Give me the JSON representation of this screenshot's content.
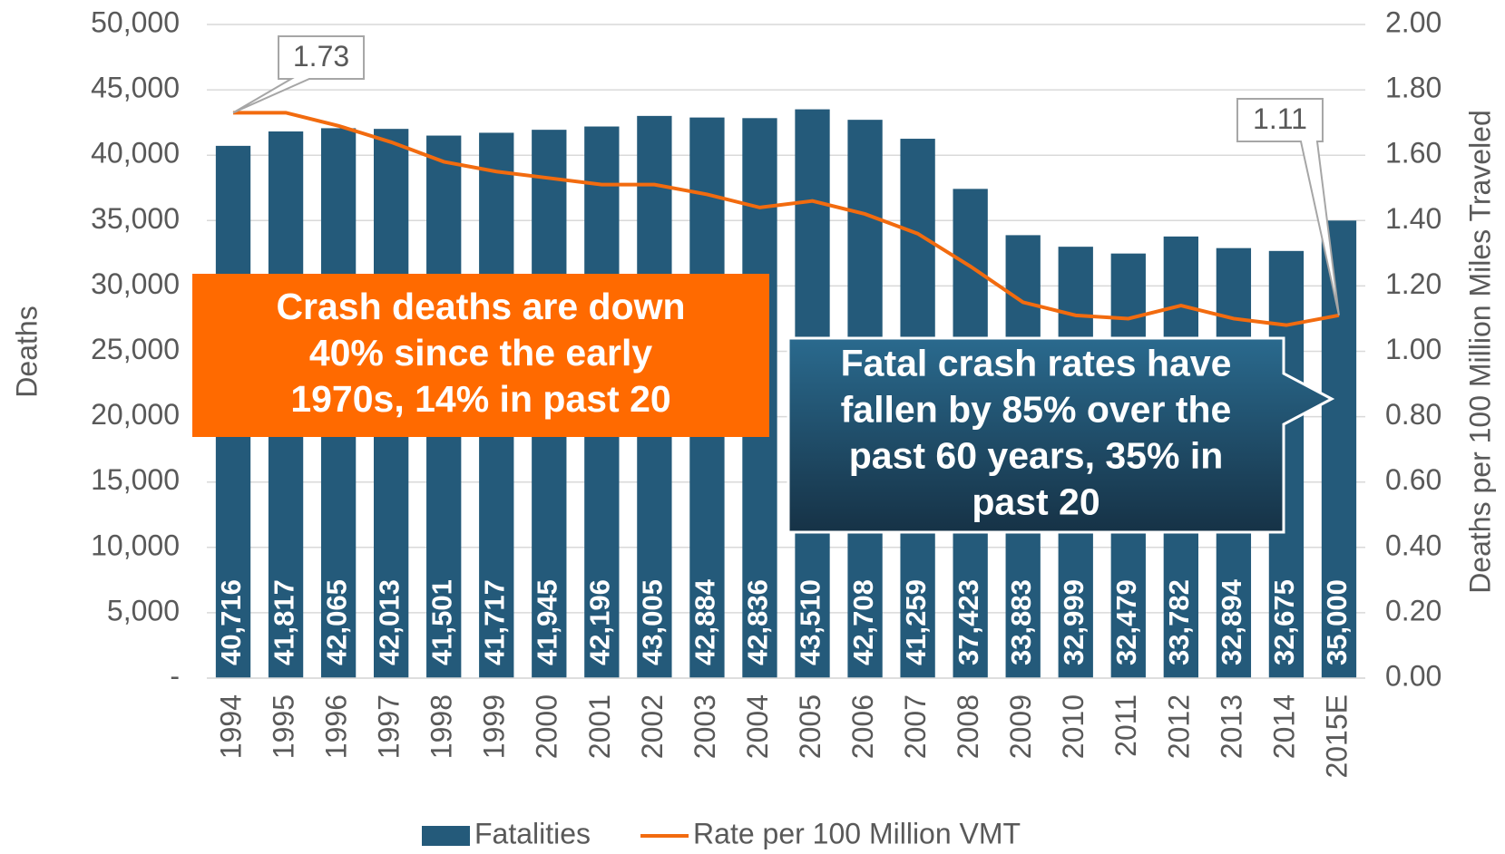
{
  "chart_data": {
    "type": "bar_line",
    "categories": [
      "1994",
      "1995",
      "1996",
      "1997",
      "1998",
      "1999",
      "2000",
      "2001",
      "2002",
      "2003",
      "2004",
      "2005",
      "2006",
      "2007",
      "2008",
      "2009",
      "2010",
      "2011",
      "2012",
      "2013",
      "2014",
      "2015E"
    ],
    "series": [
      {
        "name": "Fatalities",
        "color": "#245a7a",
        "type": "bar",
        "values": [
          40716,
          41817,
          42065,
          42013,
          41501,
          41717,
          41945,
          42196,
          43005,
          42884,
          42836,
          43510,
          42708,
          41259,
          37423,
          33883,
          32999,
          32479,
          33782,
          32894,
          32675,
          35000
        ],
        "value_labels": [
          "40,716",
          "41,817",
          "42,065",
          "42,013",
          "41,501",
          "41,717",
          "41,945",
          "42,196",
          "43,005",
          "42,884",
          "42,836",
          "43,510",
          "42,708",
          "41,259",
          "37,423",
          "33,883",
          "32,999",
          "32,479",
          "33,782",
          "32,894",
          "32,675",
          "35,000"
        ]
      },
      {
        "name": "Rate per 100 Million VMT",
        "color": "#f26b0f",
        "type": "line",
        "axis": "y2",
        "values": [
          1.73,
          1.73,
          1.69,
          1.64,
          1.58,
          1.55,
          1.53,
          1.51,
          1.51,
          1.48,
          1.44,
          1.46,
          1.42,
          1.36,
          1.26,
          1.15,
          1.11,
          1.1,
          1.14,
          1.1,
          1.08,
          1.11
        ],
        "value_labels": [
          "1.73",
          null,
          null,
          null,
          null,
          null,
          null,
          null,
          null,
          null,
          null,
          null,
          null,
          null,
          null,
          null,
          null,
          null,
          null,
          null,
          null,
          "1.11"
        ]
      }
    ],
    "y_label": "Deaths",
    "y2_label": "Deaths per 100 Million Miles Traveled",
    "ylim": [
      0,
      50000
    ],
    "yticks": [
      {
        "value": 0,
        "label": "-"
      },
      {
        "value": 5000,
        "label": "5,000"
      },
      {
        "value": 10000,
        "label": "10,000"
      },
      {
        "value": 15000,
        "label": "15,000"
      },
      {
        "value": 20000,
        "label": "20,000"
      },
      {
        "value": 25000,
        "label": "25,000"
      },
      {
        "value": 30000,
        "label": "30,000"
      },
      {
        "value": 35000,
        "label": "35,000"
      },
      {
        "value": 40000,
        "label": "40,000"
      },
      {
        "value": 45000,
        "label": "45,000"
      },
      {
        "value": 50000,
        "label": "50,000"
      }
    ],
    "y2lim": [
      0,
      2
    ],
    "y2ticks": [
      {
        "value": 0,
        "label": "0.00"
      },
      {
        "value": 0.2,
        "label": "0.20"
      },
      {
        "value": 0.4,
        "label": "0.40"
      },
      {
        "value": 0.6,
        "label": "0.60"
      },
      {
        "value": 0.8,
        "label": "0.80"
      },
      {
        "value": 1,
        "label": "1.00"
      },
      {
        "value": 1.2,
        "label": "1.20"
      },
      {
        "value": 1.4,
        "label": "1.40"
      },
      {
        "value": 1.6,
        "label": "1.60"
      },
      {
        "value": 1.8,
        "label": "1.80"
      },
      {
        "value": 2,
        "label": "2.00"
      }
    ],
    "grid": true,
    "legend": "bottom",
    "annotations": [
      {
        "lines": [
          "Crash deaths are down",
          "40% since the early",
          "1970s, 14% in past 20"
        ],
        "color": "#ff6a00"
      },
      {
        "lines": [
          "Fatal crash rates have",
          "fallen by 85% over the",
          "past 60 years, 35% in",
          "past 20"
        ],
        "color": "#1c4a66"
      }
    ]
  }
}
